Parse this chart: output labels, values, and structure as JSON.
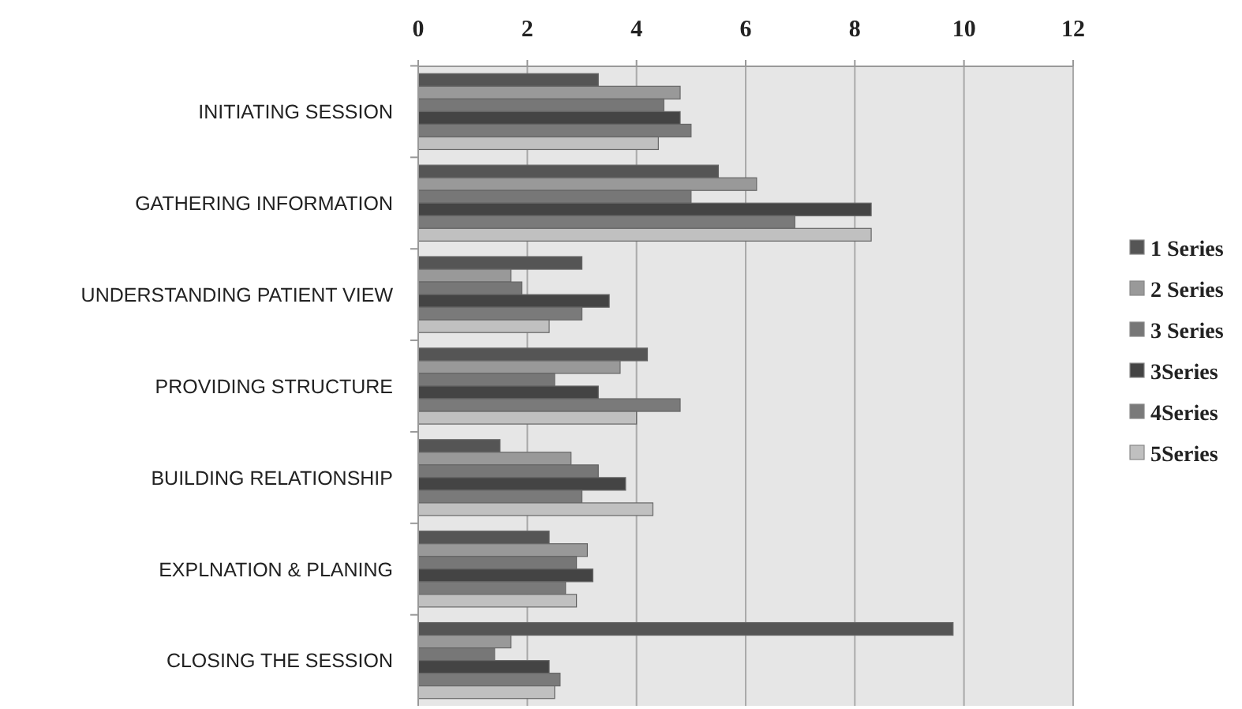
{
  "chart_data": {
    "type": "bar",
    "orientation": "horizontal",
    "categories": [
      "INITIATING SESSION",
      "GATHERING INFORMATION",
      "UNDERSTANDING PATIENT VIEW",
      "PROVIDING STRUCTURE",
      "BUILDING RELATIONSHIP",
      "EXPLNATION & PLANING",
      "CLOSING THE SESSION"
    ],
    "series": [
      {
        "name": "1 Series",
        "color": "#555555",
        "values": [
          3.3,
          5.5,
          3.0,
          4.2,
          1.5,
          2.4,
          9.8
        ]
      },
      {
        "name": "2 Series",
        "color": "#999999",
        "values": [
          4.8,
          6.2,
          1.7,
          3.7,
          2.8,
          3.1,
          1.7
        ]
      },
      {
        "name": "3 Series",
        "color": "#777777",
        "values": [
          4.5,
          5.0,
          1.9,
          2.5,
          3.3,
          2.9,
          1.4
        ]
      },
      {
        "name": "3Series",
        "color": "#444444",
        "values": [
          4.8,
          8.3,
          3.5,
          3.3,
          3.8,
          3.2,
          2.4
        ]
      },
      {
        "name": "4Series",
        "color": "#7a7a7a",
        "values": [
          5.0,
          6.9,
          3.0,
          4.8,
          3.0,
          2.7,
          2.6
        ]
      },
      {
        "name": "5Series",
        "color": "#c0c0c0",
        "values": [
          4.4,
          8.3,
          2.4,
          4.0,
          4.3,
          2.9,
          2.5
        ]
      }
    ],
    "xlim": [
      0,
      12
    ],
    "xticks": [
      0,
      2,
      4,
      6,
      8,
      10,
      12
    ],
    "grid": "x",
    "legend": "right"
  }
}
